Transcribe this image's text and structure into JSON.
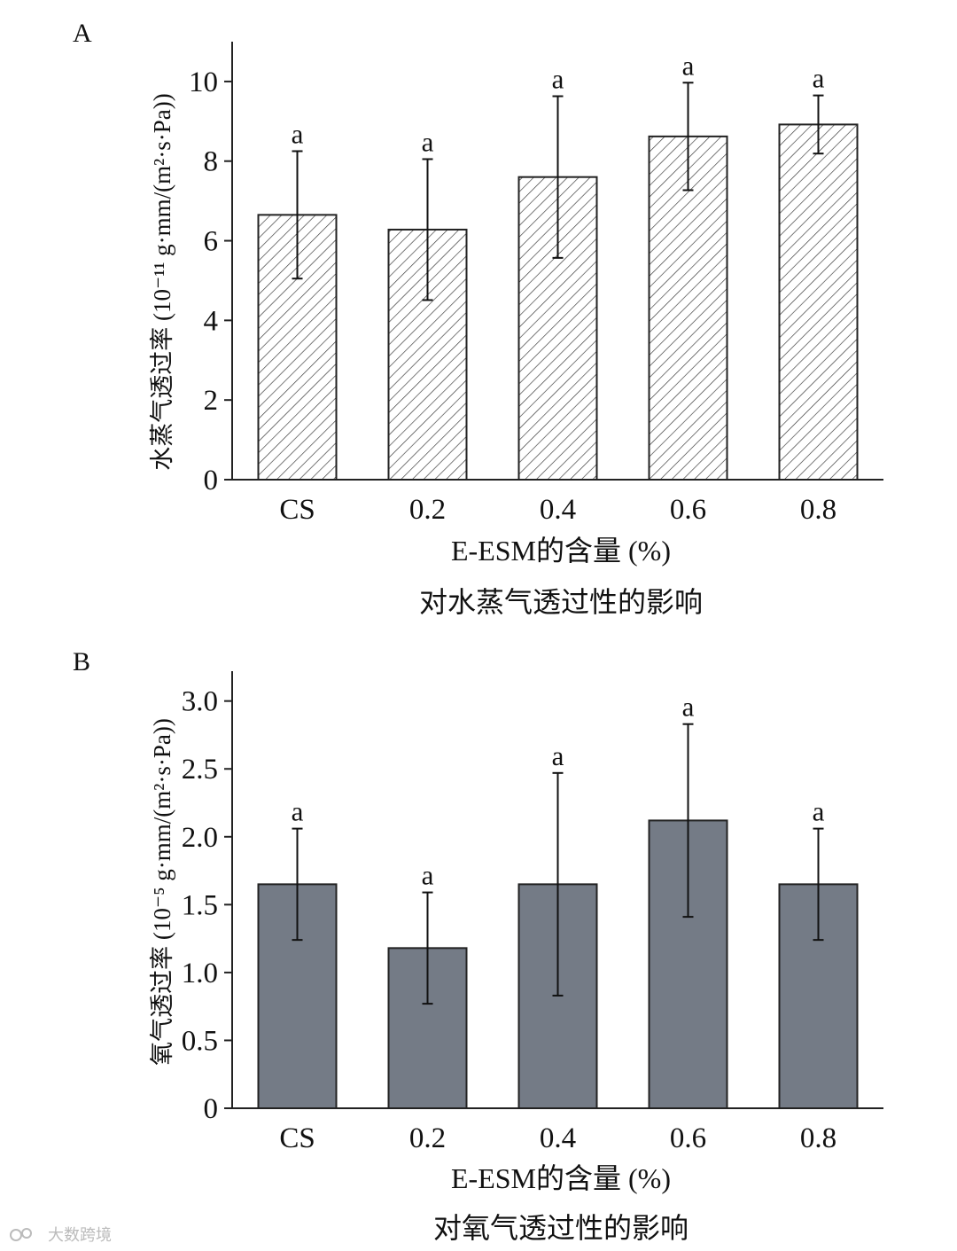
{
  "chart_data": [
    {
      "type": "bar",
      "panel": "A",
      "categories": [
        "CS",
        "0.2",
        "0.4",
        "0.6",
        "0.8"
      ],
      "values": [
        6.65,
        6.28,
        7.6,
        8.62,
        8.92
      ],
      "errors": [
        1.6,
        1.77,
        2.03,
        1.35,
        0.73
      ],
      "significance": [
        "a",
        "a",
        "a",
        "a",
        "a"
      ],
      "xlabel": "E-ESM的含量 (%)",
      "ylabel": "水蒸气透过率 (10⁻¹¹ g·mm/(m²·s·Pa))",
      "caption": "对水蒸气透过性的影响",
      "ylim": [
        0,
        11
      ],
      "yticks": [
        0,
        2,
        4,
        6,
        8,
        10
      ],
      "ytick_labels": [
        "0",
        "2",
        "4",
        "6",
        "8",
        "10"
      ],
      "bar_style": "hatched",
      "bar_color": "#ffffff"
    },
    {
      "type": "bar",
      "panel": "B",
      "categories": [
        "CS",
        "0.2",
        "0.4",
        "0.6",
        "0.8"
      ],
      "values": [
        1.65,
        1.18,
        1.65,
        2.12,
        1.65
      ],
      "errors": [
        0.41,
        0.41,
        0.82,
        0.71,
        0.41
      ],
      "significance": [
        "a",
        "a",
        "a",
        "a",
        "a"
      ],
      "xlabel": "E-ESM的含量 (%)",
      "ylabel": "氧气透过率 (10⁻⁵ g·mm/(m²·s·Pa))",
      "caption": "对氧气透过性的影响",
      "ylim": [
        0,
        3.22
      ],
      "yticks": [
        0,
        0.5,
        1.0,
        1.5,
        2.0,
        2.5,
        3.0
      ],
      "ytick_labels": [
        "0",
        "0.5",
        "1.0",
        "1.5",
        "2.0",
        "2.5",
        "3.0"
      ],
      "bar_style": "solid",
      "bar_color": "#747b86"
    }
  ],
  "watermark": "大数跨境"
}
